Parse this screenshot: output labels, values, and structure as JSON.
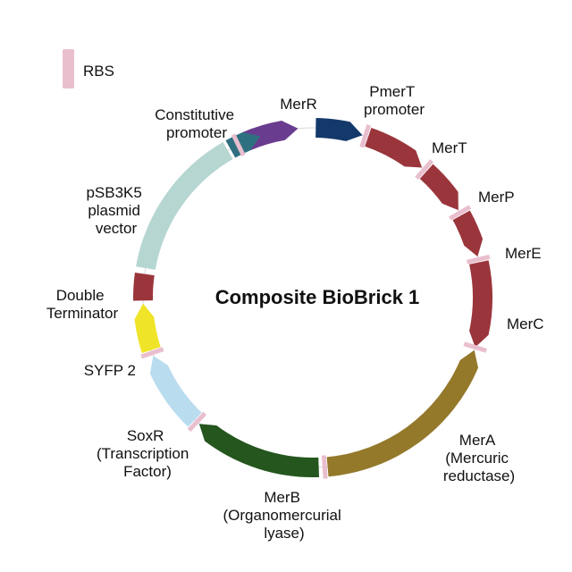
{
  "title": "Composite BioBrick 1",
  "legend": {
    "label": "RBS",
    "color": "#e9bfce"
  },
  "colors": {
    "backbone": "#ffffff",
    "rbs": "#e9bfce"
  },
  "segments": [
    {
      "id": "merr",
      "color": "#6a3c8f",
      "start": -23,
      "end": -5,
      "dir": "cw",
      "label_lines": [
        "MerR"
      ]
    },
    {
      "id": "pmert",
      "color": "#13396b",
      "start": 1,
      "end": 17,
      "dir": "cw",
      "label_lines": [
        "PmerT",
        "promoter"
      ]
    },
    {
      "id": "mert",
      "color": "#9b353c",
      "start": 19,
      "end": 40,
      "dir": "cw",
      "label_lines": [
        "MerT"
      ]
    },
    {
      "id": "merp",
      "color": "#9b353c",
      "start": 42,
      "end": 59,
      "dir": "cw",
      "label_lines": [
        "MerP"
      ]
    },
    {
      "id": "mere",
      "color": "#9b353c",
      "start": 61,
      "end": 76,
      "dir": "cw",
      "label_lines": [
        "MerE"
      ]
    },
    {
      "id": "merc",
      "color": "#9b353c",
      "start": 78,
      "end": 107,
      "dir": "cw",
      "label_lines": [
        "MerC"
      ]
    },
    {
      "id": "mera",
      "color": "#94792b",
      "start": 108,
      "end": 175,
      "dir": "ccw",
      "label_lines": [
        "MerA",
        "(Mercuric",
        "reductase)"
      ]
    },
    {
      "id": "merb",
      "color": "#24561e",
      "start": 178,
      "end": 222,
      "dir": "cw",
      "label_lines": [
        "MerB",
        "(Organomercurial",
        "lyase)"
      ]
    },
    {
      "id": "soxr",
      "color": "#b9dcef",
      "start": 224,
      "end": 250,
      "dir": "cw",
      "label_lines": [
        "SoxR",
        "(Transcription",
        "Factor)"
      ]
    },
    {
      "id": "syfp2",
      "color": "#f0e428",
      "start": 252,
      "end": 268,
      "dir": "cw",
      "label_lines": [
        "SYFP 2"
      ]
    },
    {
      "id": "terminator",
      "color": "#9b353c",
      "start": 269,
      "end": 278,
      "dir": "none",
      "label_lines": [
        "Double",
        "Terminator"
      ]
    },
    {
      "id": "psb3k5",
      "color": "#b6d6d2",
      "start": 280,
      "end": 330,
      "dir": "none",
      "label_lines": [
        "pSB3K5",
        "plasmid",
        "vector"
      ]
    },
    {
      "id": "constitutive",
      "color": "#2f7080",
      "start": 331,
      "end": 342,
      "dir": "cw",
      "label_lines": [
        "Constitutive",
        "promoter"
      ]
    }
  ],
  "rbs_sites": [
    -26,
    18,
    41,
    60,
    77,
    107,
    176,
    223,
    251
  ]
}
